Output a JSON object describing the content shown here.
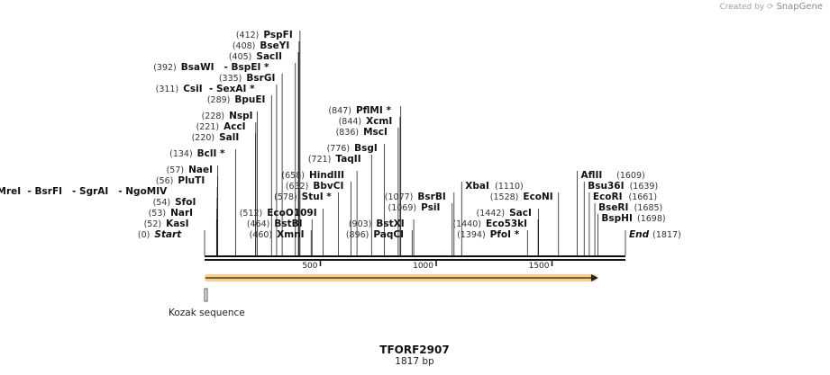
{
  "watermark": {
    "prefix": "Created by",
    "brand": "SnapGene"
  },
  "sequence": {
    "name": "TFORF2907",
    "length_label": "1817 bp",
    "length": 1817
  },
  "ruler": {
    "ticks": [
      500,
      1000,
      1500
    ]
  },
  "features": [
    {
      "name": "Kozak sequence",
      "start": 0,
      "end": 6,
      "type": "misc"
    },
    {
      "name": "ORF",
      "start": 0,
      "end": 1700,
      "type": "orf",
      "color": "#f5a623"
    }
  ],
  "sites": [
    {
      "text": "Start",
      "pos": 0,
      "pos_label": "(0)",
      "italic": true
    },
    {
      "text": "KasI",
      "pos": 52,
      "pos_label": "(52)"
    },
    {
      "text": "NarI",
      "pos": 53,
      "pos_label": "(53)"
    },
    {
      "text": "SfoI",
      "pos": 54,
      "pos_label": "(54)"
    },
    {
      "text": "MreI  - BsrFI   - SgrAI   - NgoMIV",
      "pos": 55,
      "pos_label": "(55)"
    },
    {
      "text": "PluTI",
      "pos": 56,
      "pos_label": "(56)"
    },
    {
      "text": "NaeI",
      "pos": 57,
      "pos_label": "(57)"
    },
    {
      "text": "BclI *",
      "pos": 134,
      "pos_label": "(134)"
    },
    {
      "text": "SalI",
      "pos": 220,
      "pos_label": "(220)"
    },
    {
      "text": "AccI",
      "pos": 221,
      "pos_label": "(221)"
    },
    {
      "text": "NspI",
      "pos": 228,
      "pos_label": "(228)"
    },
    {
      "text": "BpuEI",
      "pos": 289,
      "pos_label": "(289)"
    },
    {
      "text": "CsiI  - SexAI *",
      "pos": 311,
      "pos_label": "(311)"
    },
    {
      "text": "BsrGI",
      "pos": 335,
      "pos_label": "(335)"
    },
    {
      "text": "BsaWI   - BspEI *",
      "pos": 392,
      "pos_label": "(392)"
    },
    {
      "text": "SacII",
      "pos": 405,
      "pos_label": "(405)"
    },
    {
      "text": "BseYI",
      "pos": 408,
      "pos_label": "(408)"
    },
    {
      "text": "PspFI",
      "pos": 412,
      "pos_label": "(412)"
    },
    {
      "text": "XmnI",
      "pos": 460,
      "pos_label": "(460)"
    },
    {
      "text": "BstBI",
      "pos": 464,
      "pos_label": "(464)"
    },
    {
      "text": "EcoO109I",
      "pos": 512,
      "pos_label": "(512)"
    },
    {
      "text": "StuI *",
      "pos": 578,
      "pos_label": "(578)"
    },
    {
      "text": "BbvCI",
      "pos": 632,
      "pos_label": "(632)"
    },
    {
      "text": "HindIII",
      "pos": 658,
      "pos_label": "(658)"
    },
    {
      "text": "TaqII",
      "pos": 721,
      "pos_label": "(721)"
    },
    {
      "text": "BsgI",
      "pos": 776,
      "pos_label": "(776)"
    },
    {
      "text": "MscI",
      "pos": 836,
      "pos_label": "(836)"
    },
    {
      "text": "XcmI",
      "pos": 844,
      "pos_label": "(844)"
    },
    {
      "text": "PflMI *",
      "pos": 847,
      "pos_label": "(847)"
    },
    {
      "text": "PaqCI",
      "pos": 896,
      "pos_label": "(896)"
    },
    {
      "text": "BstXI",
      "pos": 903,
      "pos_label": "(903)"
    },
    {
      "text": "PsiI",
      "pos": 1069,
      "pos_label": "(1069)"
    },
    {
      "text": "BsrBI",
      "pos": 1077,
      "pos_label": "(1077)"
    },
    {
      "text": "XbaI",
      "pos": 1110,
      "pos_label": "(1110)"
    },
    {
      "text": "PfoI *",
      "pos": 1394,
      "pos_label": "(1394)"
    },
    {
      "text": "Eco53kI",
      "pos": 1440,
      "pos_label": "(1440)"
    },
    {
      "text": "SacI",
      "pos": 1442,
      "pos_label": "(1442)"
    },
    {
      "text": "EcoNI",
      "pos": 1528,
      "pos_label": "(1528)"
    },
    {
      "text": "AflII",
      "pos": 1609,
      "pos_label": "(1609)"
    },
    {
      "text": "Bsu36I",
      "pos": 1639,
      "pos_label": "(1639)"
    },
    {
      "text": "EcoRI",
      "pos": 1661,
      "pos_label": "(1661)"
    },
    {
      "text": "BseRI",
      "pos": 1685,
      "pos_label": "(1685)"
    },
    {
      "text": "BspHI",
      "pos": 1698,
      "pos_label": "(1698)"
    },
    {
      "text": "End",
      "pos": 1817,
      "pos_label": "(1817)",
      "italic": true
    }
  ]
}
